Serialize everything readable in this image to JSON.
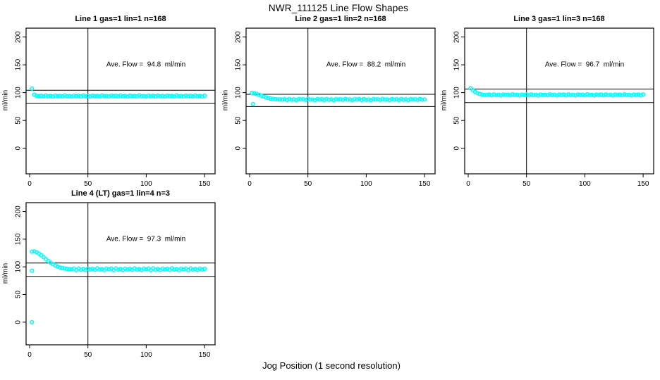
{
  "page": {
    "title": "NWR_111125  Line Flow Shapes",
    "xlabel": "Jog Position (1 second resolution)"
  },
  "colors": {
    "points": "#00ffff",
    "axis": "#000000",
    "background": "#ffffff"
  },
  "chart_data": [
    {
      "type": "scatter",
      "title": "Line 1 gas=1 lin=1 n=168",
      "n": 168,
      "annotation": "Ave. Flow =  94.8  ml/min",
      "ave_flow_ml_min": 94.8,
      "ylabel": "ml/min",
      "xticks": [
        0,
        50,
        100,
        150
      ],
      "yticks": [
        0,
        50,
        100,
        150,
        200
      ],
      "xlim": [
        -3,
        159
      ],
      "ylim": [
        -46,
        216
      ],
      "vline_x": 50,
      "hlines": [
        104.3,
        80.6
      ],
      "annotation_pos": {
        "x": 100,
        "y": 150
      },
      "points": {
        "x_start": 2,
        "x_step": 2,
        "y": [
          107.5,
          96.5,
          94.5,
          93.8,
          94.5,
          93.2,
          94.9,
          93.5,
          94.2,
          93.0,
          94.6,
          93.9,
          94.3,
          93.4,
          95.0,
          93.7,
          94.1,
          93.1,
          94.7,
          93.8,
          94.5,
          93.2,
          94.9,
          93.5,
          94.2,
          93.0,
          94.6,
          93.9,
          94.3,
          93.4,
          95.0,
          93.7,
          94.1,
          93.1,
          94.7,
          93.8,
          94.5,
          93.2,
          94.9,
          93.5,
          94.2,
          93.0,
          94.6,
          93.9,
          94.3,
          93.4,
          95.0,
          93.7,
          94.1,
          93.1,
          94.7,
          93.8,
          94.5,
          93.2,
          94.9,
          93.5,
          94.2,
          93.0,
          94.6,
          93.9,
          94.3,
          93.4,
          95.0,
          93.7,
          94.1,
          93.1,
          94.7,
          93.8,
          94.5,
          93.2,
          94.9,
          93.5,
          94.2,
          93.0,
          94.6
        ]
      },
      "extra_points": []
    },
    {
      "type": "scatter",
      "title": "Line 2 gas=1 lin=2 n=168",
      "n": 168,
      "annotation": "Ave. Flow =  88.2  ml/min",
      "ave_flow_ml_min": 88.2,
      "ylabel": "ml/min",
      "xticks": [
        0,
        50,
        100,
        150
      ],
      "yticks": [
        0,
        50,
        100,
        150,
        200
      ],
      "xlim": [
        -3,
        159
      ],
      "ylim": [
        -46,
        216
      ],
      "vline_x": 50,
      "hlines": [
        97.0,
        75.0
      ],
      "annotation_pos": {
        "x": 100,
        "y": 150
      },
      "points": {
        "x_start": 2,
        "x_step": 2,
        "y": [
          99.5,
          98.8,
          97.6,
          96.2,
          94.6,
          93.0,
          91.6,
          90.4,
          89.4,
          88.7,
          88.2,
          87.9,
          87.7,
          87.5,
          88.2,
          86.9,
          88.6,
          87.2,
          87.9,
          86.7,
          88.3,
          87.6,
          88.0,
          87.1,
          88.7,
          87.4,
          87.8,
          86.8,
          88.4,
          87.5,
          88.2,
          86.9,
          88.6,
          87.2,
          87.9,
          86.7,
          88.3,
          87.6,
          88.0,
          87.1,
          88.7,
          87.4,
          87.8,
          86.8,
          88.4,
          87.5,
          88.2,
          86.9,
          88.6,
          87.2,
          87.9,
          86.7,
          88.3,
          87.6,
          88.0,
          87.1,
          88.7,
          87.4,
          87.8,
          86.8,
          88.4,
          87.5,
          88.2,
          86.9,
          88.6,
          87.2,
          87.9,
          86.7,
          88.3,
          87.6,
          88.0,
          87.1,
          88.7,
          87.4,
          87.8
        ]
      },
      "extra_points": [
        [
          3,
          79.5
        ]
      ]
    },
    {
      "type": "scatter",
      "title": "Line 3 gas=1 lin=3 n=168",
      "n": 168,
      "annotation": "Ave. Flow =  96.7  ml/min",
      "ave_flow_ml_min": 96.7,
      "ylabel": "ml/min",
      "xticks": [
        0,
        50,
        100,
        150
      ],
      "yticks": [
        0,
        50,
        100,
        150,
        200
      ],
      "xlim": [
        -3,
        159
      ],
      "ylim": [
        -46,
        216
      ],
      "vline_x": 50,
      "hlines": [
        106.4,
        82.2
      ],
      "annotation_pos": {
        "x": 100,
        "y": 150
      },
      "points": {
        "x_start": 2,
        "x_step": 2,
        "y": [
          108.0,
          104.5,
          101.5,
          99.2,
          97.6,
          96.6,
          96.0,
          95.8,
          96.5,
          95.2,
          96.9,
          95.5,
          96.2,
          95.0,
          96.6,
          95.9,
          96.3,
          95.4,
          97.0,
          95.7,
          96.1,
          95.1,
          96.7,
          95.8,
          96.5,
          95.2,
          96.9,
          95.5,
          96.2,
          95.0,
          96.6,
          95.9,
          96.3,
          95.4,
          97.0,
          95.7,
          96.1,
          95.1,
          96.7,
          95.8,
          96.5,
          95.2,
          96.9,
          95.5,
          96.2,
          95.0,
          96.6,
          95.9,
          96.3,
          95.4,
          97.0,
          95.7,
          96.1,
          95.1,
          96.7,
          95.8,
          96.5,
          95.2,
          96.9,
          95.5,
          96.2,
          95.0,
          96.6,
          95.9,
          96.3,
          95.4,
          97.0,
          95.7,
          96.1,
          95.1,
          96.7,
          95.8,
          96.5,
          95.2,
          96.9
        ]
      },
      "extra_points": []
    },
    {
      "type": "scatter",
      "title": "Line 4 (LT) gas=1 lin=4 n=3",
      "n": 3,
      "annotation": "Ave. Flow =  97.3  ml/min",
      "ave_flow_ml_min": 97.3,
      "ylabel": "ml/min",
      "xticks": [
        0,
        50,
        100,
        150
      ],
      "yticks": [
        0,
        50,
        100,
        150,
        200
      ],
      "xlim": [
        -3,
        159
      ],
      "ylim": [
        -41,
        216
      ],
      "vline_x": 50,
      "hlines": [
        107.0,
        82.7
      ],
      "annotation_pos": {
        "x": 100,
        "y": 150
      },
      "points": {
        "x_start": 2,
        "x_step": 2,
        "y": [
          127.5,
          128.0,
          126.5,
          124.0,
          121.0,
          117.5,
          114.0,
          110.5,
          107.5,
          105.0,
          102.5,
          100.5,
          99.0,
          97.8,
          97.0,
          96.4,
          96.0,
          95.5,
          96.9,
          94.1,
          97.0,
          94.8,
          96.2,
          94.4,
          96.7,
          95.1,
          96.4,
          94.6,
          97.2,
          95.0,
          95.9,
          94.3,
          96.8,
          95.5,
          96.9,
          94.1,
          97.0,
          94.8,
          96.2,
          94.4,
          96.7,
          95.1,
          96.4,
          94.6,
          97.2,
          95.0,
          95.9,
          94.3,
          96.8,
          95.5,
          96.9,
          94.1,
          97.0,
          94.8,
          96.2,
          94.4,
          96.7,
          95.1,
          96.4,
          94.6,
          97.2,
          95.0,
          95.9,
          94.3,
          96.8,
          95.5,
          96.9,
          94.1,
          97.0,
          94.8,
          96.2,
          94.4,
          96.7,
          95.1,
          96.4
        ]
      },
      "extra_points": [
        [
          2,
          93.0
        ],
        [
          2,
          0.0
        ]
      ]
    }
  ]
}
